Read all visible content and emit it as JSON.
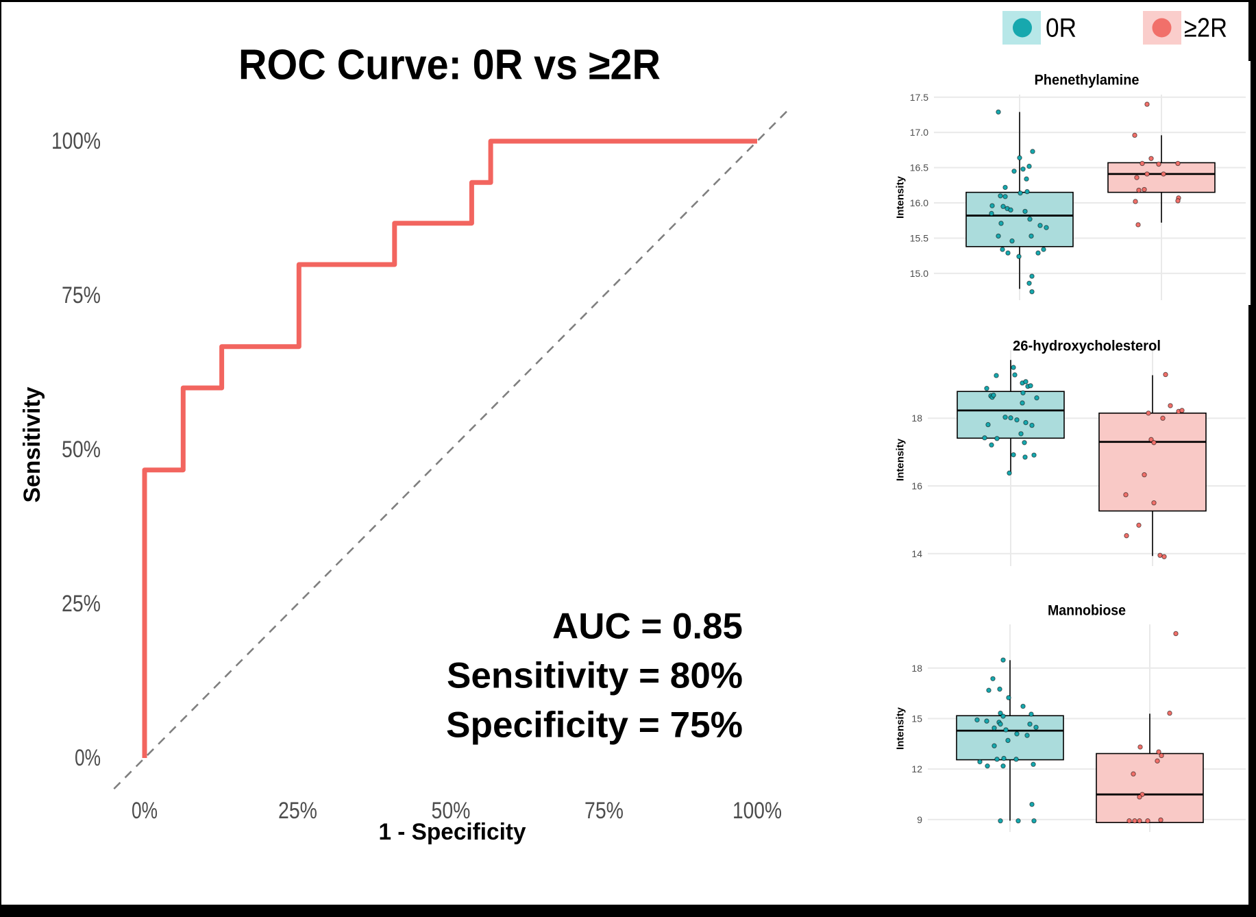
{
  "figure": {
    "background": "#FFFFFF",
    "frame_color": "#000000"
  },
  "colors": {
    "group_0R": "#17A8AE",
    "group_2R": "#F1706A",
    "box_fill_0R": "#ABDCDC",
    "box_fill_2R": "#F9C9C6",
    "legend_fill_0R": "#B7E7E8",
    "legend_fill_2R": "#FACDCB",
    "roc_line": "#F2655F",
    "diagonal": "#7F7F7F",
    "gridline": "#E9E9E9",
    "tick_text": "#4D4D4D",
    "box_stroke": "#000000"
  },
  "legend": {
    "items": [
      {
        "label": "0R",
        "color": "#17A8AE",
        "fill": "#B7E7E8"
      },
      {
        "label": "≥2R",
        "color": "#F1706A",
        "fill": "#FACDCB"
      }
    ]
  },
  "chart_data": [
    {
      "type": "line",
      "name": "roc",
      "title": "ROC Curve: 0R vs ≥2R",
      "xlabel": "1 - Specificity",
      "ylabel": "Sensitivity",
      "x_ticks": [
        {
          "value": 0,
          "label": "0%"
        },
        {
          "value": 25,
          "label": "25%"
        },
        {
          "value": 50,
          "label": "50%"
        },
        {
          "value": 75,
          "label": "75%"
        },
        {
          "value": 100,
          "label": "100%"
        }
      ],
      "y_ticks": [
        {
          "value": 0,
          "label": "0%"
        },
        {
          "value": 25,
          "label": "25%"
        },
        {
          "value": 50,
          "label": "50%"
        },
        {
          "value": 75,
          "label": "75%"
        },
        {
          "value": 100,
          "label": "100%"
        }
      ],
      "xlim": [
        0,
        100
      ],
      "ylim": [
        0,
        100
      ],
      "grid": false,
      "diagonal_reference": true,
      "series": [
        {
          "name": "ROC",
          "points_fpr_tpr": [
            [
              0,
              0
            ],
            [
              0,
              46.7
            ],
            [
              6.3,
              46.7
            ],
            [
              6.3,
              60.0
            ],
            [
              12.6,
              60.0
            ],
            [
              12.6,
              66.7
            ],
            [
              25.2,
              66.7
            ],
            [
              25.2,
              80.0
            ],
            [
              40.8,
              80.0
            ],
            [
              40.8,
              86.7
            ],
            [
              53.4,
              86.7
            ],
            [
              53.4,
              93.3
            ],
            [
              56.5,
              93.3
            ],
            [
              56.5,
              100.0
            ],
            [
              100.0,
              100.0
            ]
          ]
        }
      ],
      "annotations": [
        "AUC = 0.85",
        "Sensitivity = 80%",
        "Specificity = 75%"
      ]
    },
    {
      "type": "box",
      "name": "panel-phenethylamine",
      "title": "Phenethylamine",
      "ylabel": "Intensity",
      "y_ticks": [
        {
          "value": 17.5,
          "label": "17.5"
        },
        {
          "value": 17.0,
          "label": "17.0"
        },
        {
          "value": 16.5,
          "label": "16.5"
        },
        {
          "value": 16.0,
          "label": "16.0"
        },
        {
          "value": 15.5,
          "label": "15.5"
        },
        {
          "value": 15.0,
          "label": "15.0"
        }
      ],
      "grid": true,
      "groups": [
        {
          "name": "0R",
          "box": {
            "whisker_low": 14.78,
            "q1": 15.38,
            "median": 15.82,
            "q3": 16.15,
            "whisker_high": 17.29
          },
          "points": [
            [
              -31,
              17.29
            ],
            [
              19,
              16.73
            ],
            [
              0,
              16.64
            ],
            [
              14,
              16.52
            ],
            [
              -8,
              16.45
            ],
            [
              5,
              16.48
            ],
            [
              10,
              16.34
            ],
            [
              -21,
              16.22
            ],
            [
              1,
              16.14
            ],
            [
              11,
              16.16
            ],
            [
              -28,
              16.1
            ],
            [
              -21,
              16.09
            ],
            [
              -40,
              15.96
            ],
            [
              -24,
              15.95
            ],
            [
              -18,
              15.92
            ],
            [
              -13,
              15.9
            ],
            [
              -41,
              15.85
            ],
            [
              8,
              15.88
            ],
            [
              15,
              15.77
            ],
            [
              -27,
              15.71
            ],
            [
              30,
              15.68
            ],
            [
              39,
              15.65
            ],
            [
              -31,
              15.53
            ],
            [
              17,
              15.53
            ],
            [
              -11,
              15.46
            ],
            [
              -25,
              15.34
            ],
            [
              -1,
              15.24
            ],
            [
              -17,
              15.29
            ],
            [
              27,
              15.29
            ],
            [
              35,
              15.34
            ],
            [
              18,
              14.96
            ],
            [
              14,
              14.86
            ],
            [
              18,
              14.74
            ]
          ]
        },
        {
          "name": "≥2R",
          "box": {
            "whisker_low": 15.72,
            "q1": 16.15,
            "median": 16.41,
            "q3": 16.57,
            "whisker_high": 16.96
          },
          "points": [
            [
              -21,
              17.4
            ],
            [
              -39,
              16.96
            ],
            [
              -15,
              16.63
            ],
            [
              -28,
              16.56
            ],
            [
              -4,
              16.55
            ],
            [
              24,
              16.56
            ],
            [
              -21,
              16.41
            ],
            [
              3,
              16.41
            ],
            [
              -36,
              16.36
            ],
            [
              -33,
              16.18
            ],
            [
              -25,
              16.19
            ],
            [
              25,
              16.07
            ],
            [
              24,
              16.03
            ],
            [
              -38,
              16.02
            ],
            [
              -34,
              15.69
            ]
          ]
        }
      ]
    },
    {
      "type": "box",
      "name": "panel-26-hydroxycholesterol",
      "title": "26-hydroxycholesterol",
      "ylabel": "Intensity",
      "y_ticks": [
        {
          "value": 18,
          "label": "18"
        },
        {
          "value": 16,
          "label": "16"
        },
        {
          "value": 14,
          "label": "14"
        }
      ],
      "grid": true,
      "groups": [
        {
          "name": "0R",
          "box": {
            "whisker_low": 16.38,
            "q1": 17.41,
            "median": 18.23,
            "q3": 18.79,
            "whisker_high": 19.72
          },
          "points": [
            [
              4,
              19.5
            ],
            [
              -21,
              19.26
            ],
            [
              6,
              19.28
            ],
            [
              17,
              19.04
            ],
            [
              22,
              19.08
            ],
            [
              25,
              18.94
            ],
            [
              29,
              18.96
            ],
            [
              -35,
              18.88
            ],
            [
              18,
              18.75
            ],
            [
              38,
              18.6
            ],
            [
              -29,
              18.66
            ],
            [
              -27,
              18.62
            ],
            [
              -25,
              18.68
            ],
            [
              17,
              18.45
            ],
            [
              -8,
              18.03
            ],
            [
              0,
              18.01
            ],
            [
              9,
              17.95
            ],
            [
              22,
              17.87
            ],
            [
              -33,
              17.81
            ],
            [
              31,
              17.79
            ],
            [
              15,
              17.54
            ],
            [
              -38,
              17.42
            ],
            [
              -20,
              17.4
            ],
            [
              -28,
              17.21
            ],
            [
              20,
              17.28
            ],
            [
              4,
              16.92
            ],
            [
              21,
              16.85
            ],
            [
              34,
              16.91
            ],
            [
              -2,
              16.38
            ]
          ]
        },
        {
          "name": "≥2R",
          "box": {
            "whisker_low": 13.93,
            "q1": 15.26,
            "median": 17.3,
            "q3": 18.15,
            "whisker_high": 19.27
          },
          "points": [
            [
              19,
              19.29
            ],
            [
              26,
              18.37
            ],
            [
              38,
              18.2
            ],
            [
              43,
              18.23
            ],
            [
              -6,
              18.15
            ],
            [
              15,
              18.0
            ],
            [
              -2,
              17.37
            ],
            [
              2,
              17.28
            ],
            [
              -12,
              16.33
            ],
            [
              -39,
              15.74
            ],
            [
              2,
              15.5
            ],
            [
              -20,
              14.84
            ],
            [
              -38,
              14.53
            ],
            [
              11,
              13.95
            ],
            [
              17,
              13.91
            ]
          ]
        }
      ]
    },
    {
      "type": "box",
      "name": "panel-mannobiose",
      "title": "Mannobiose",
      "ylabel": "Intensity",
      "y_ticks": [
        {
          "value": 18,
          "label": "18"
        },
        {
          "value": 15,
          "label": "15"
        },
        {
          "value": 12,
          "label": "12"
        },
        {
          "value": 9,
          "label": "9"
        }
      ],
      "grid": true,
      "groups": [
        {
          "name": "0R",
          "box": {
            "whisker_low": 8.93,
            "q1": 12.55,
            "median": 14.28,
            "q3": 15.17,
            "whisker_high": 18.47
          },
          "points": [
            [
              -10,
              18.48
            ],
            [
              -25,
              17.37
            ],
            [
              -31,
              16.68
            ],
            [
              -15,
              16.75
            ],
            [
              -2,
              16.24
            ],
            [
              19,
              15.73
            ],
            [
              31,
              15.26
            ],
            [
              -14,
              15.32
            ],
            [
              -10,
              15.14
            ],
            [
              -16,
              14.78
            ],
            [
              -14,
              14.67
            ],
            [
              -34,
              14.85
            ],
            [
              -48,
              14.92
            ],
            [
              -23,
              14.44
            ],
            [
              -6,
              14.33
            ],
            [
              10,
              14.09
            ],
            [
              25,
              14.0
            ],
            [
              -23,
              13.38
            ],
            [
              -3,
              13.7
            ],
            [
              29,
              14.67
            ],
            [
              38,
              14.48
            ],
            [
              -44,
              12.43
            ],
            [
              -33,
              12.18
            ],
            [
              -19,
              12.58
            ],
            [
              -9,
              12.63
            ],
            [
              -10,
              12.18
            ],
            [
              9,
              12.58
            ],
            [
              34,
              12.28
            ],
            [
              32,
              9.9
            ],
            [
              -14,
              8.92
            ],
            [
              12,
              8.92
            ],
            [
              35,
              8.92
            ]
          ]
        },
        {
          "name": "≥2R",
          "box": {
            "whisker_low": 8.82,
            "q1": 8.82,
            "median": 10.49,
            "q3": 12.92,
            "whisker_high": 15.29
          },
          "points": [
            [
              38,
              20.05
            ],
            [
              29,
              15.32
            ],
            [
              -14,
              13.31
            ],
            [
              13,
              13.02
            ],
            [
              17,
              12.8
            ],
            [
              11,
              12.48
            ],
            [
              -24,
              11.71
            ],
            [
              -11,
              10.49
            ],
            [
              -15,
              10.34
            ],
            [
              -30,
              8.92
            ],
            [
              -22,
              8.92
            ],
            [
              -15,
              8.92
            ],
            [
              -3,
              8.92
            ],
            [
              16,
              8.97
            ]
          ]
        }
      ]
    }
  ]
}
